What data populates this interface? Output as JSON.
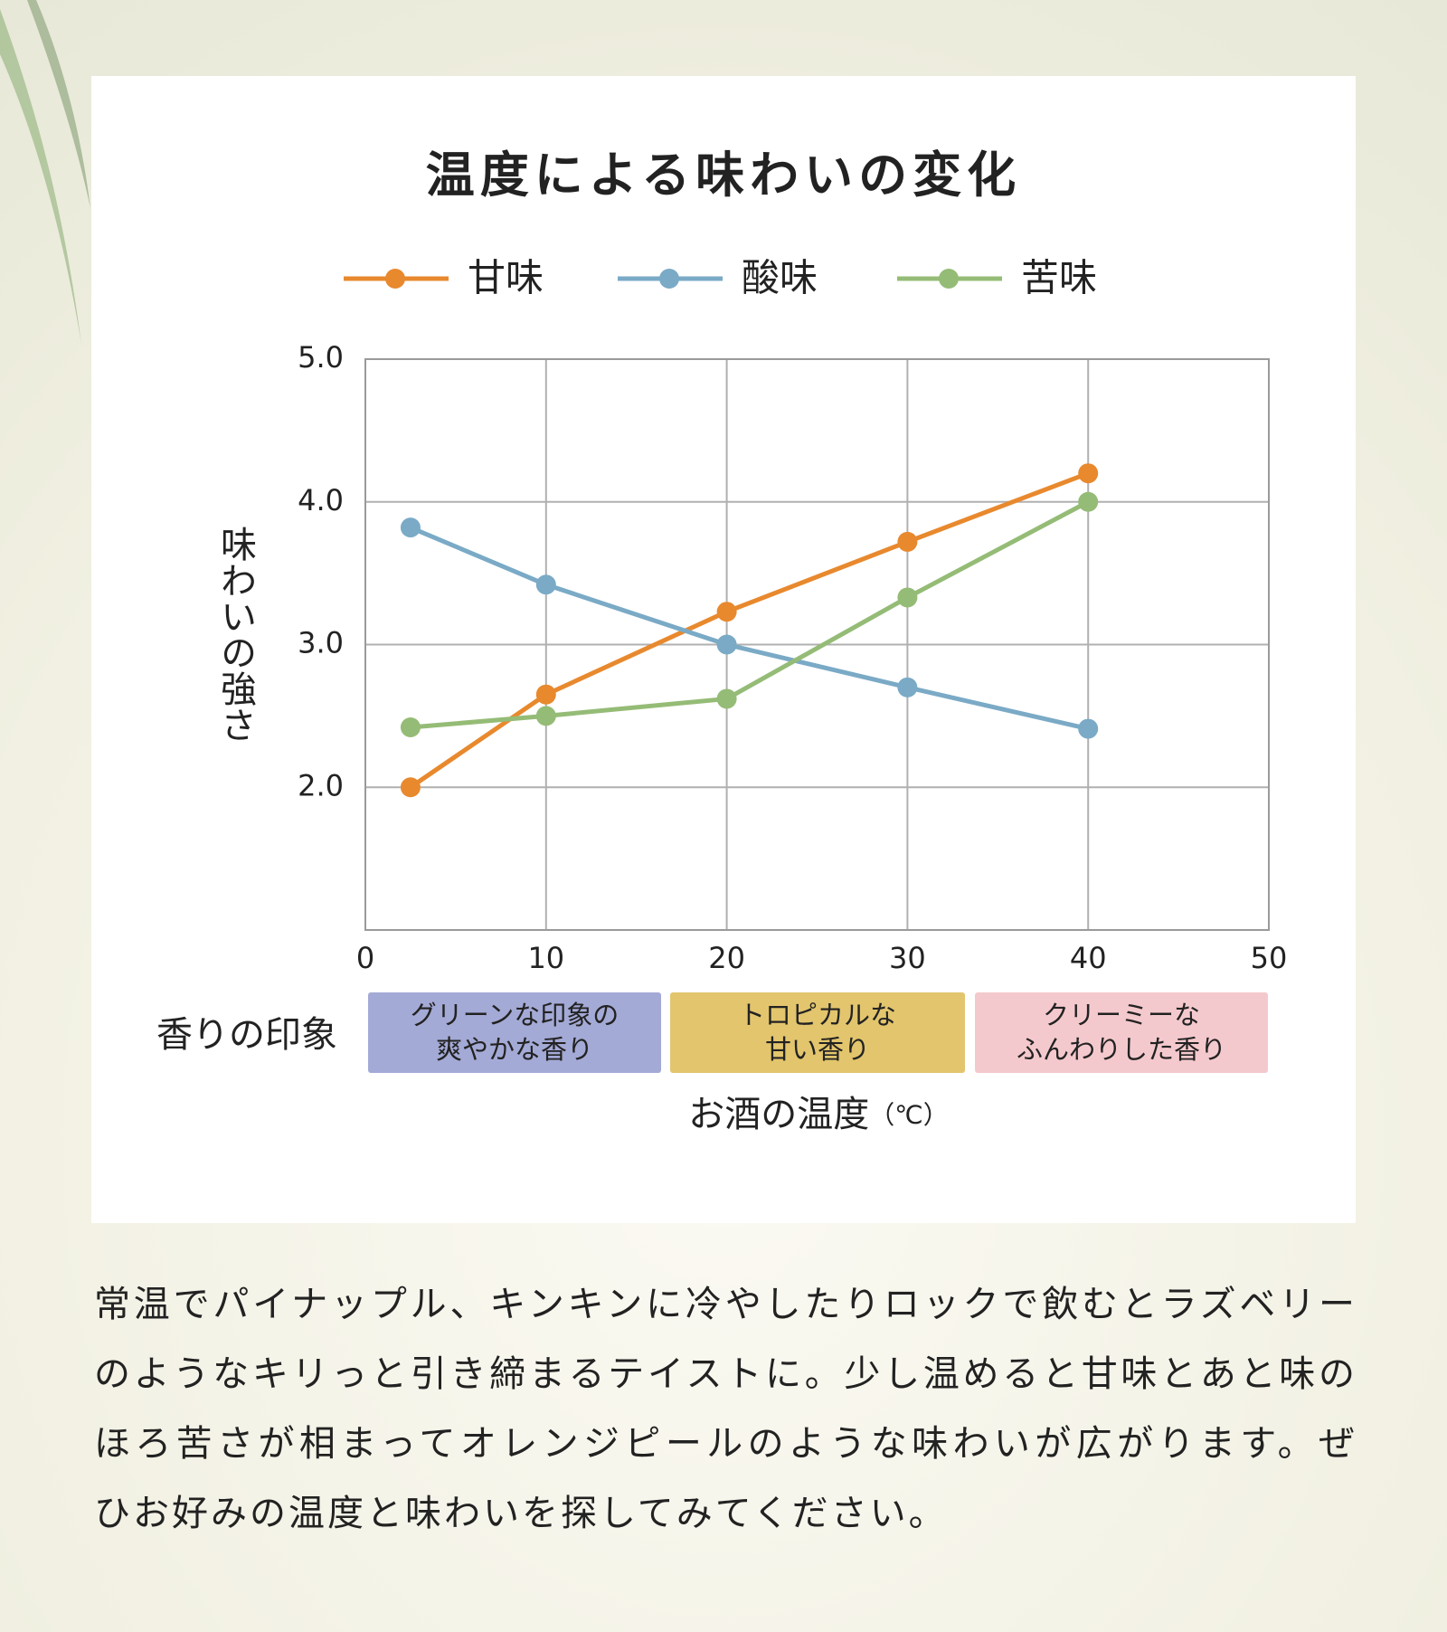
{
  "chart_data": {
    "type": "line",
    "title": "温度による味わいの変化",
    "x": [
      2.5,
      10,
      20,
      30,
      40
    ],
    "series": [
      {
        "name": "甘味",
        "color": "#e8892e",
        "values": [
          2.0,
          2.65,
          3.23,
          3.72,
          4.2
        ]
      },
      {
        "name": "酸味",
        "color": "#7aaac6",
        "values": [
          3.82,
          3.42,
          3.0,
          2.7,
          2.41
        ]
      },
      {
        "name": "苦味",
        "color": "#95bc76",
        "values": [
          2.42,
          2.5,
          2.62,
          3.33,
          4.0
        ]
      }
    ],
    "xlim": [
      0,
      50
    ],
    "xticks": [
      0,
      10,
      20,
      30,
      40,
      50
    ],
    "ylim": [
      1,
      5
    ],
    "yticks": [
      {
        "value": 2,
        "label": "2.0"
      },
      {
        "value": 3,
        "label": "3.0"
      },
      {
        "value": 4,
        "label": "4.0"
      },
      {
        "value": 5,
        "label": "5.0"
      }
    ],
    "grid": true,
    "y_label": "味わいの強さ",
    "x_label": "お酒の温度",
    "x_label_unit": "（℃）",
    "aroma_label": "香りの印象",
    "aroma_bands": [
      {
        "lines": [
          "グリーンな印象の",
          "爽やかな香り"
        ],
        "color": "#a4aad6"
      },
      {
        "lines": [
          "トロピカルな",
          "甘い香り"
        ],
        "color": "#e2c56d"
      },
      {
        "lines": [
          "クリーミーな",
          "ふんわりした香り"
        ],
        "color": "#f4c9cd"
      }
    ]
  },
  "description": {
    "lines": [
      "常温でパイナップル、キンキンに冷やしたりロックで飲むとラズベリー",
      "のようなキリっと引き締まるテイストに。少し温めると甘味とあと味の",
      "ほろ苦さが相まってオレンジピールのような味わいが広がります。ぜ",
      "ひお好みの温度と味わいを探してみてください。"
    ]
  }
}
